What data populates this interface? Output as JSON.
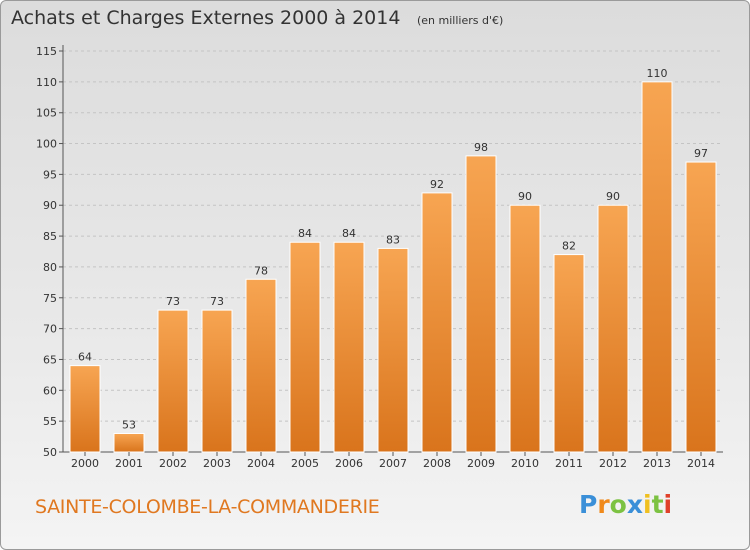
{
  "chart_data": {
    "type": "bar",
    "title": "Achats et Charges Externes 2000 à 2014",
    "subtitle": "(en milliers d'€)",
    "xlabel": "",
    "ylabel": "",
    "categories": [
      "2000",
      "2001",
      "2002",
      "2003",
      "2004",
      "2005",
      "2006",
      "2007",
      "2008",
      "2009",
      "2010",
      "2011",
      "2012",
      "2013",
      "2014"
    ],
    "values": [
      64,
      53,
      73,
      73,
      78,
      84,
      84,
      83,
      92,
      98,
      90,
      82,
      90,
      110,
      97
    ],
    "ylim": [
      50,
      115
    ],
    "yticks": [
      50,
      55,
      60,
      65,
      70,
      75,
      80,
      85,
      90,
      95,
      100,
      105,
      110,
      115
    ],
    "grid": true,
    "bar_color": "#f0953a"
  },
  "commune_name": "SAINTE-COLOMBE-LA-COMMANDERIE",
  "logo": {
    "text": "Proxiti",
    "letters": [
      "P",
      "r",
      "o",
      "x",
      "i",
      "t",
      "i"
    ],
    "colors": [
      "#3a8fd8",
      "#f08a1c",
      "#7cc242",
      "#3a8fd8",
      "#f0c020",
      "#7cc242",
      "#e0402a"
    ]
  }
}
